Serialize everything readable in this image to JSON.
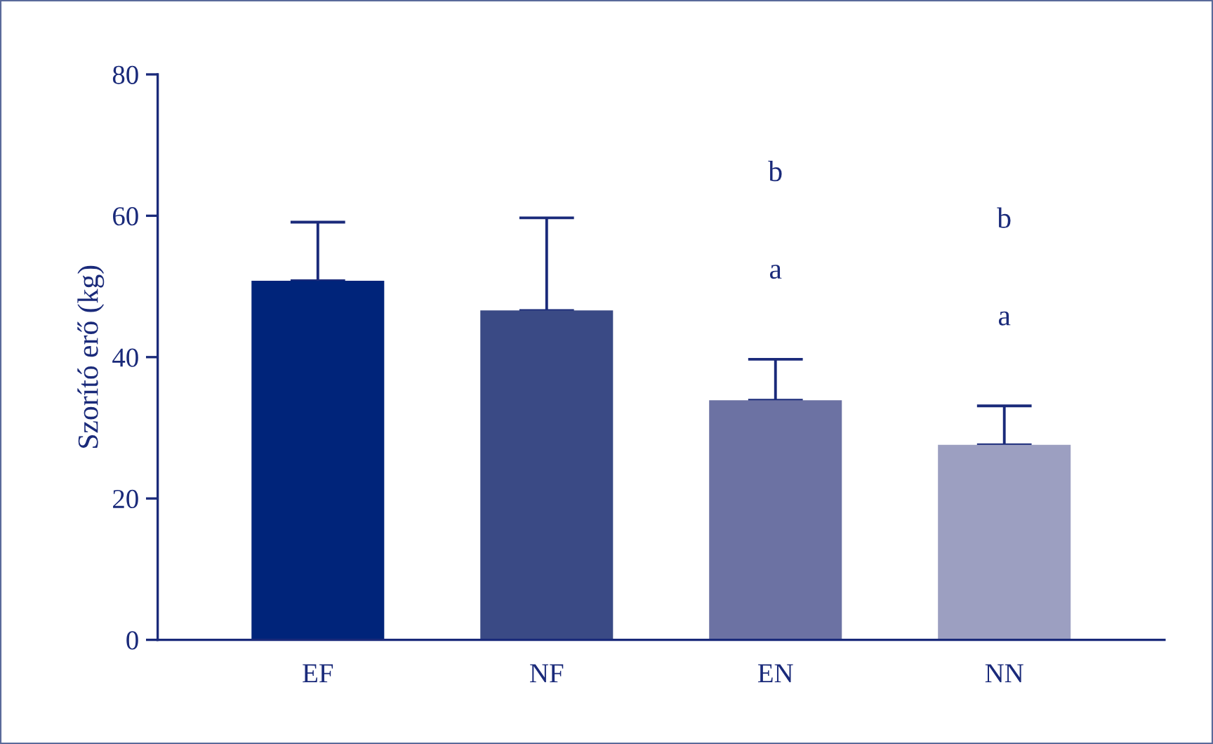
{
  "chart_data": {
    "type": "bar",
    "ylabel": "Szorító erő (kg)",
    "categories": [
      "EF",
      "NF",
      "EN",
      "NN"
    ],
    "values": [
      50.8,
      46.6,
      33.9,
      27.6
    ],
    "colors": [
      "#00247a",
      "#3a4a85",
      "#6c72a3",
      "#9c9fc1"
    ],
    "errors": [
      [
        50.8,
        59.1
      ],
      [
        46.6,
        59.7
      ],
      [
        33.9,
        39.7
      ],
      [
        27.6,
        33.1
      ]
    ],
    "ylim": [
      0,
      80
    ],
    "yticks": [
      0,
      20,
      40,
      60,
      80
    ],
    "grid": false,
    "annotations": [
      "b",
      "a",
      "b",
      "a"
    ]
  }
}
